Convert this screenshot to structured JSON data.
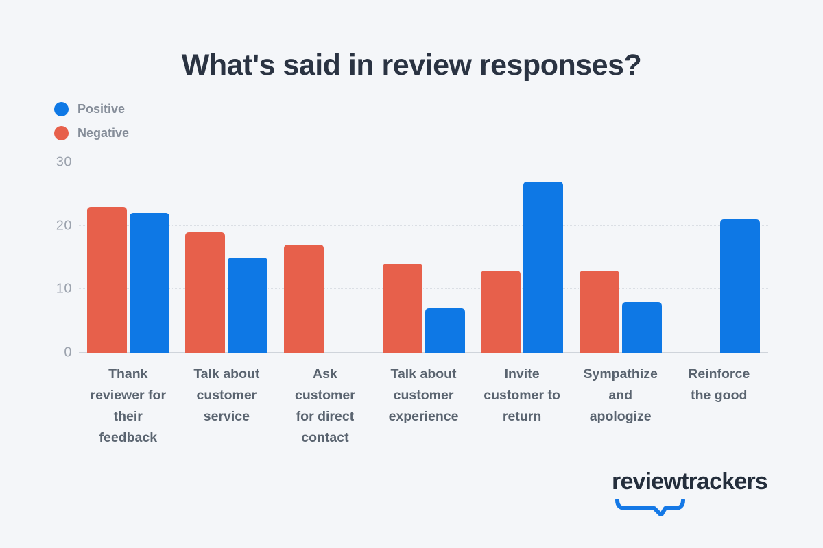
{
  "title": "What's said in review responses?",
  "colors": {
    "background": "#F4F6F9",
    "title_text": "#2A3342",
    "positive": "#0E78E5",
    "negative": "#E7604B",
    "legend_label": "#858D99",
    "y_tick_label": "#9CA3AE",
    "x_category_label": "#5A6470",
    "gridline": "#DBDFE5",
    "axis_line": "#CFD4DB",
    "logo_text": "#242E3C",
    "logo_mark": "#1478E6"
  },
  "legend": {
    "items": [
      {
        "label": "Positive",
        "color": "#0E78E5"
      },
      {
        "label": "Negative",
        "color": "#E7604B"
      }
    ]
  },
  "chart_data": {
    "type": "bar",
    "title": "What's said in review responses?",
    "categories": [
      "Thank reviewer for their feedback",
      "Talk about customer service",
      "Ask customer for direct contact",
      "Talk about customer experience",
      "Invite customer to return",
      "Sympathize and apologize",
      "Reinforce the good"
    ],
    "series": [
      {
        "name": "Negative",
        "color": "#E7604B",
        "values": [
          23,
          19,
          17,
          14,
          13,
          13,
          0
        ]
      },
      {
        "name": "Positive",
        "color": "#0E78E5",
        "values": [
          22,
          15,
          0,
          7,
          27,
          8,
          21
        ]
      }
    ],
    "xlabel": "",
    "ylabel": "",
    "ylim": [
      0,
      30
    ],
    "yticks": [
      0,
      10,
      20,
      30
    ],
    "grid": "horizontal-dotted",
    "legend_position": "top-left"
  },
  "footer": {
    "logo_text": "reviewtrackers"
  }
}
